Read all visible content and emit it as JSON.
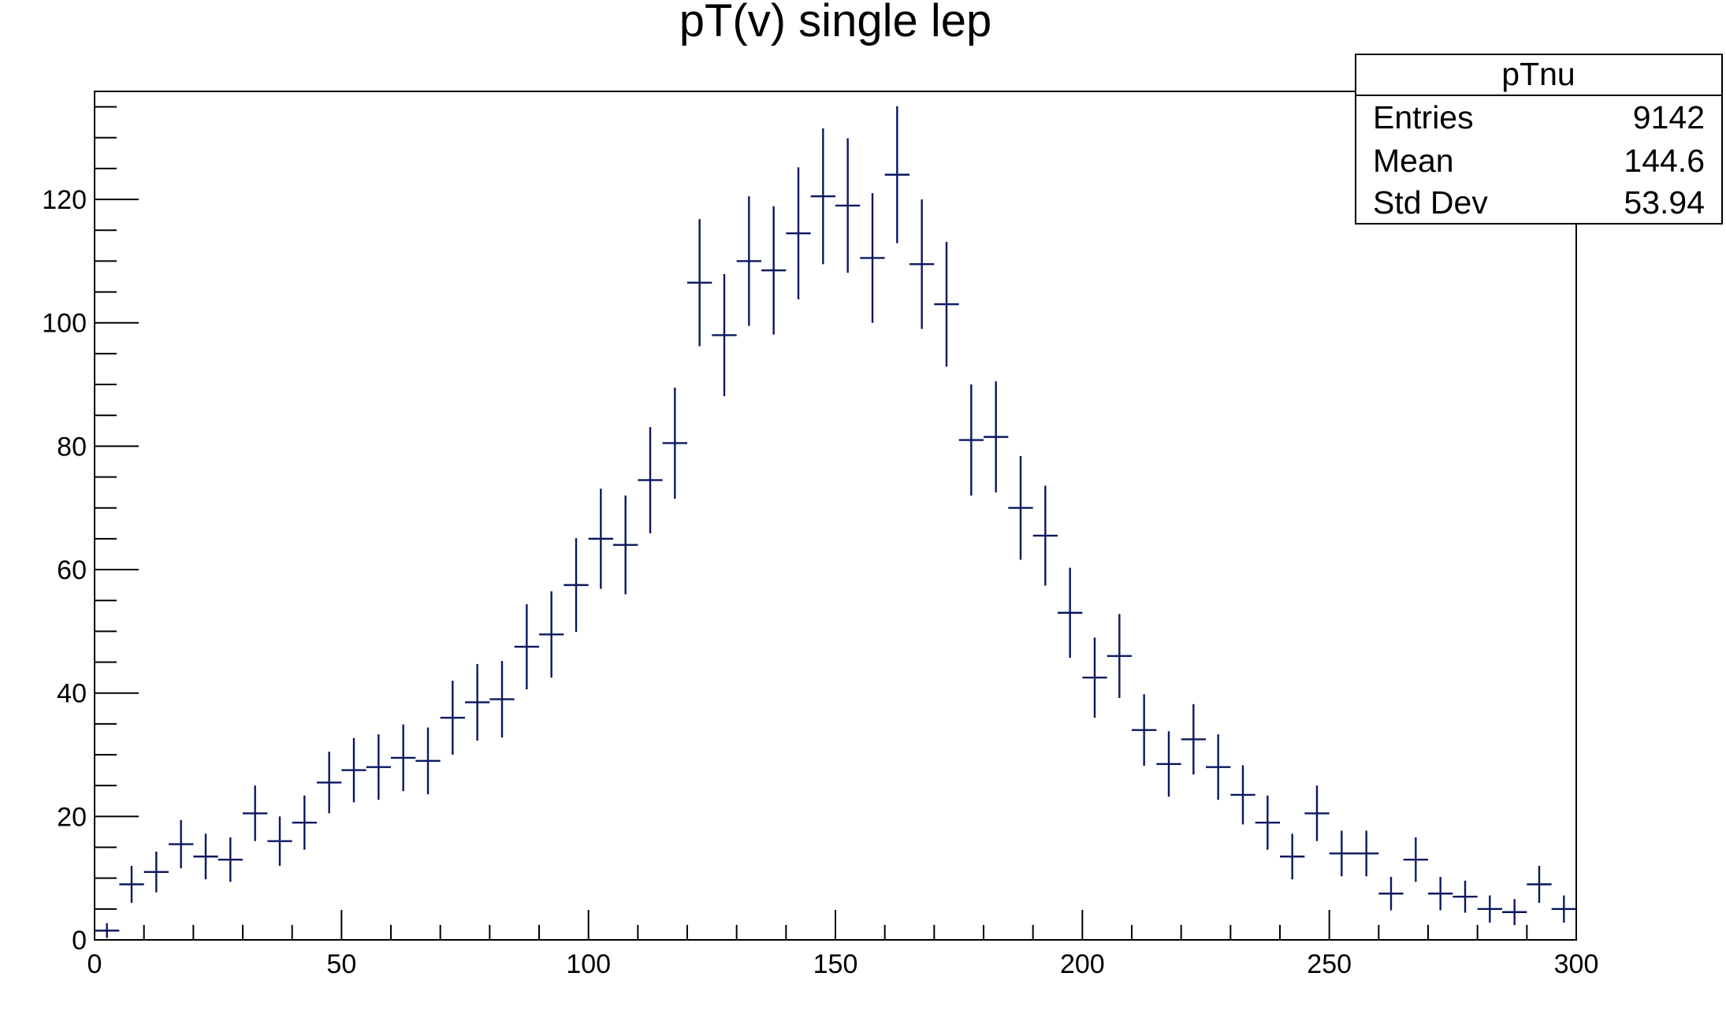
{
  "chart_data": {
    "type": "histogram",
    "title": "pT(v) single lep",
    "xlabel": "",
    "ylabel": "",
    "xlim": [
      0,
      300
    ],
    "ylim": [
      0,
      137.5
    ],
    "x_ticks": [
      0,
      50,
      100,
      150,
      200,
      250,
      300
    ],
    "y_ticks": [
      0,
      20,
      40,
      60,
      80,
      100,
      120
    ],
    "bin_width": 5,
    "series": [
      {
        "color": "#0a1760",
        "x": [
          2.5,
          7.5,
          12.5,
          17.5,
          22.5,
          27.5,
          32.5,
          37.5,
          42.5,
          47.5,
          52.5,
          57.5,
          62.5,
          67.5,
          72.5,
          77.5,
          82.5,
          87.5,
          92.5,
          97.5,
          102.5,
          107.5,
          112.5,
          117.5,
          122.5,
          127.5,
          132.5,
          137.5,
          142.5,
          147.5,
          152.5,
          157.5,
          162.5,
          167.5,
          172.5,
          177.5,
          182.5,
          187.5,
          192.5,
          197.5,
          202.5,
          207.5,
          212.5,
          217.5,
          222.5,
          227.5,
          232.5,
          237.5,
          242.5,
          247.5,
          252.5,
          257.5,
          262.5,
          267.5,
          272.5,
          277.5,
          282.5,
          287.5,
          292.5,
          297.5
        ],
        "y": [
          1.5,
          9,
          11,
          15.5,
          13.5,
          13,
          20.5,
          16,
          19,
          25.5,
          27.5,
          28,
          29.5,
          29,
          36,
          38.5,
          39,
          47.5,
          49.5,
          57.5,
          65,
          64,
          74.5,
          80.5,
          106.5,
          98,
          110,
          108.5,
          114.5,
          120.5,
          119,
          110.5,
          124,
          109.5,
          103,
          81,
          81.5,
          70,
          65.5,
          53,
          42.5,
          46,
          34,
          28.5,
          32.5,
          28,
          23.5,
          19,
          13.5,
          20.5,
          14,
          14,
          7.5,
          13,
          7.5,
          7,
          5,
          4.5,
          9,
          5
        ],
        "yerr": [
          1.2,
          3.0,
          3.3,
          3.9,
          3.7,
          3.6,
          4.5,
          4.0,
          4.4,
          5.0,
          5.2,
          5.3,
          5.4,
          5.4,
          6.0,
          6.2,
          6.2,
          6.9,
          7.0,
          7.6,
          8.1,
          8.0,
          8.6,
          9.0,
          10.3,
          9.9,
          10.5,
          10.4,
          10.7,
          11.0,
          10.9,
          10.5,
          11.1,
          10.5,
          10.1,
          9.0,
          9.0,
          8.4,
          8.1,
          7.3,
          6.5,
          6.8,
          5.8,
          5.3,
          5.7,
          5.3,
          4.8,
          4.4,
          3.7,
          4.5,
          3.7,
          3.7,
          2.7,
          3.6,
          2.7,
          2.6,
          2.2,
          2.1,
          3.0,
          2.2
        ]
      }
    ],
    "stats_box": {
      "name": "pTnu",
      "rows": [
        {
          "label": "Entries",
          "value": "9142"
        },
        {
          "label": "Mean",
          "value": "144.6"
        },
        {
          "label": "Std Dev",
          "value": "53.94"
        }
      ]
    },
    "grid": false,
    "legend": "none",
    "stats_placement": "top-right"
  }
}
